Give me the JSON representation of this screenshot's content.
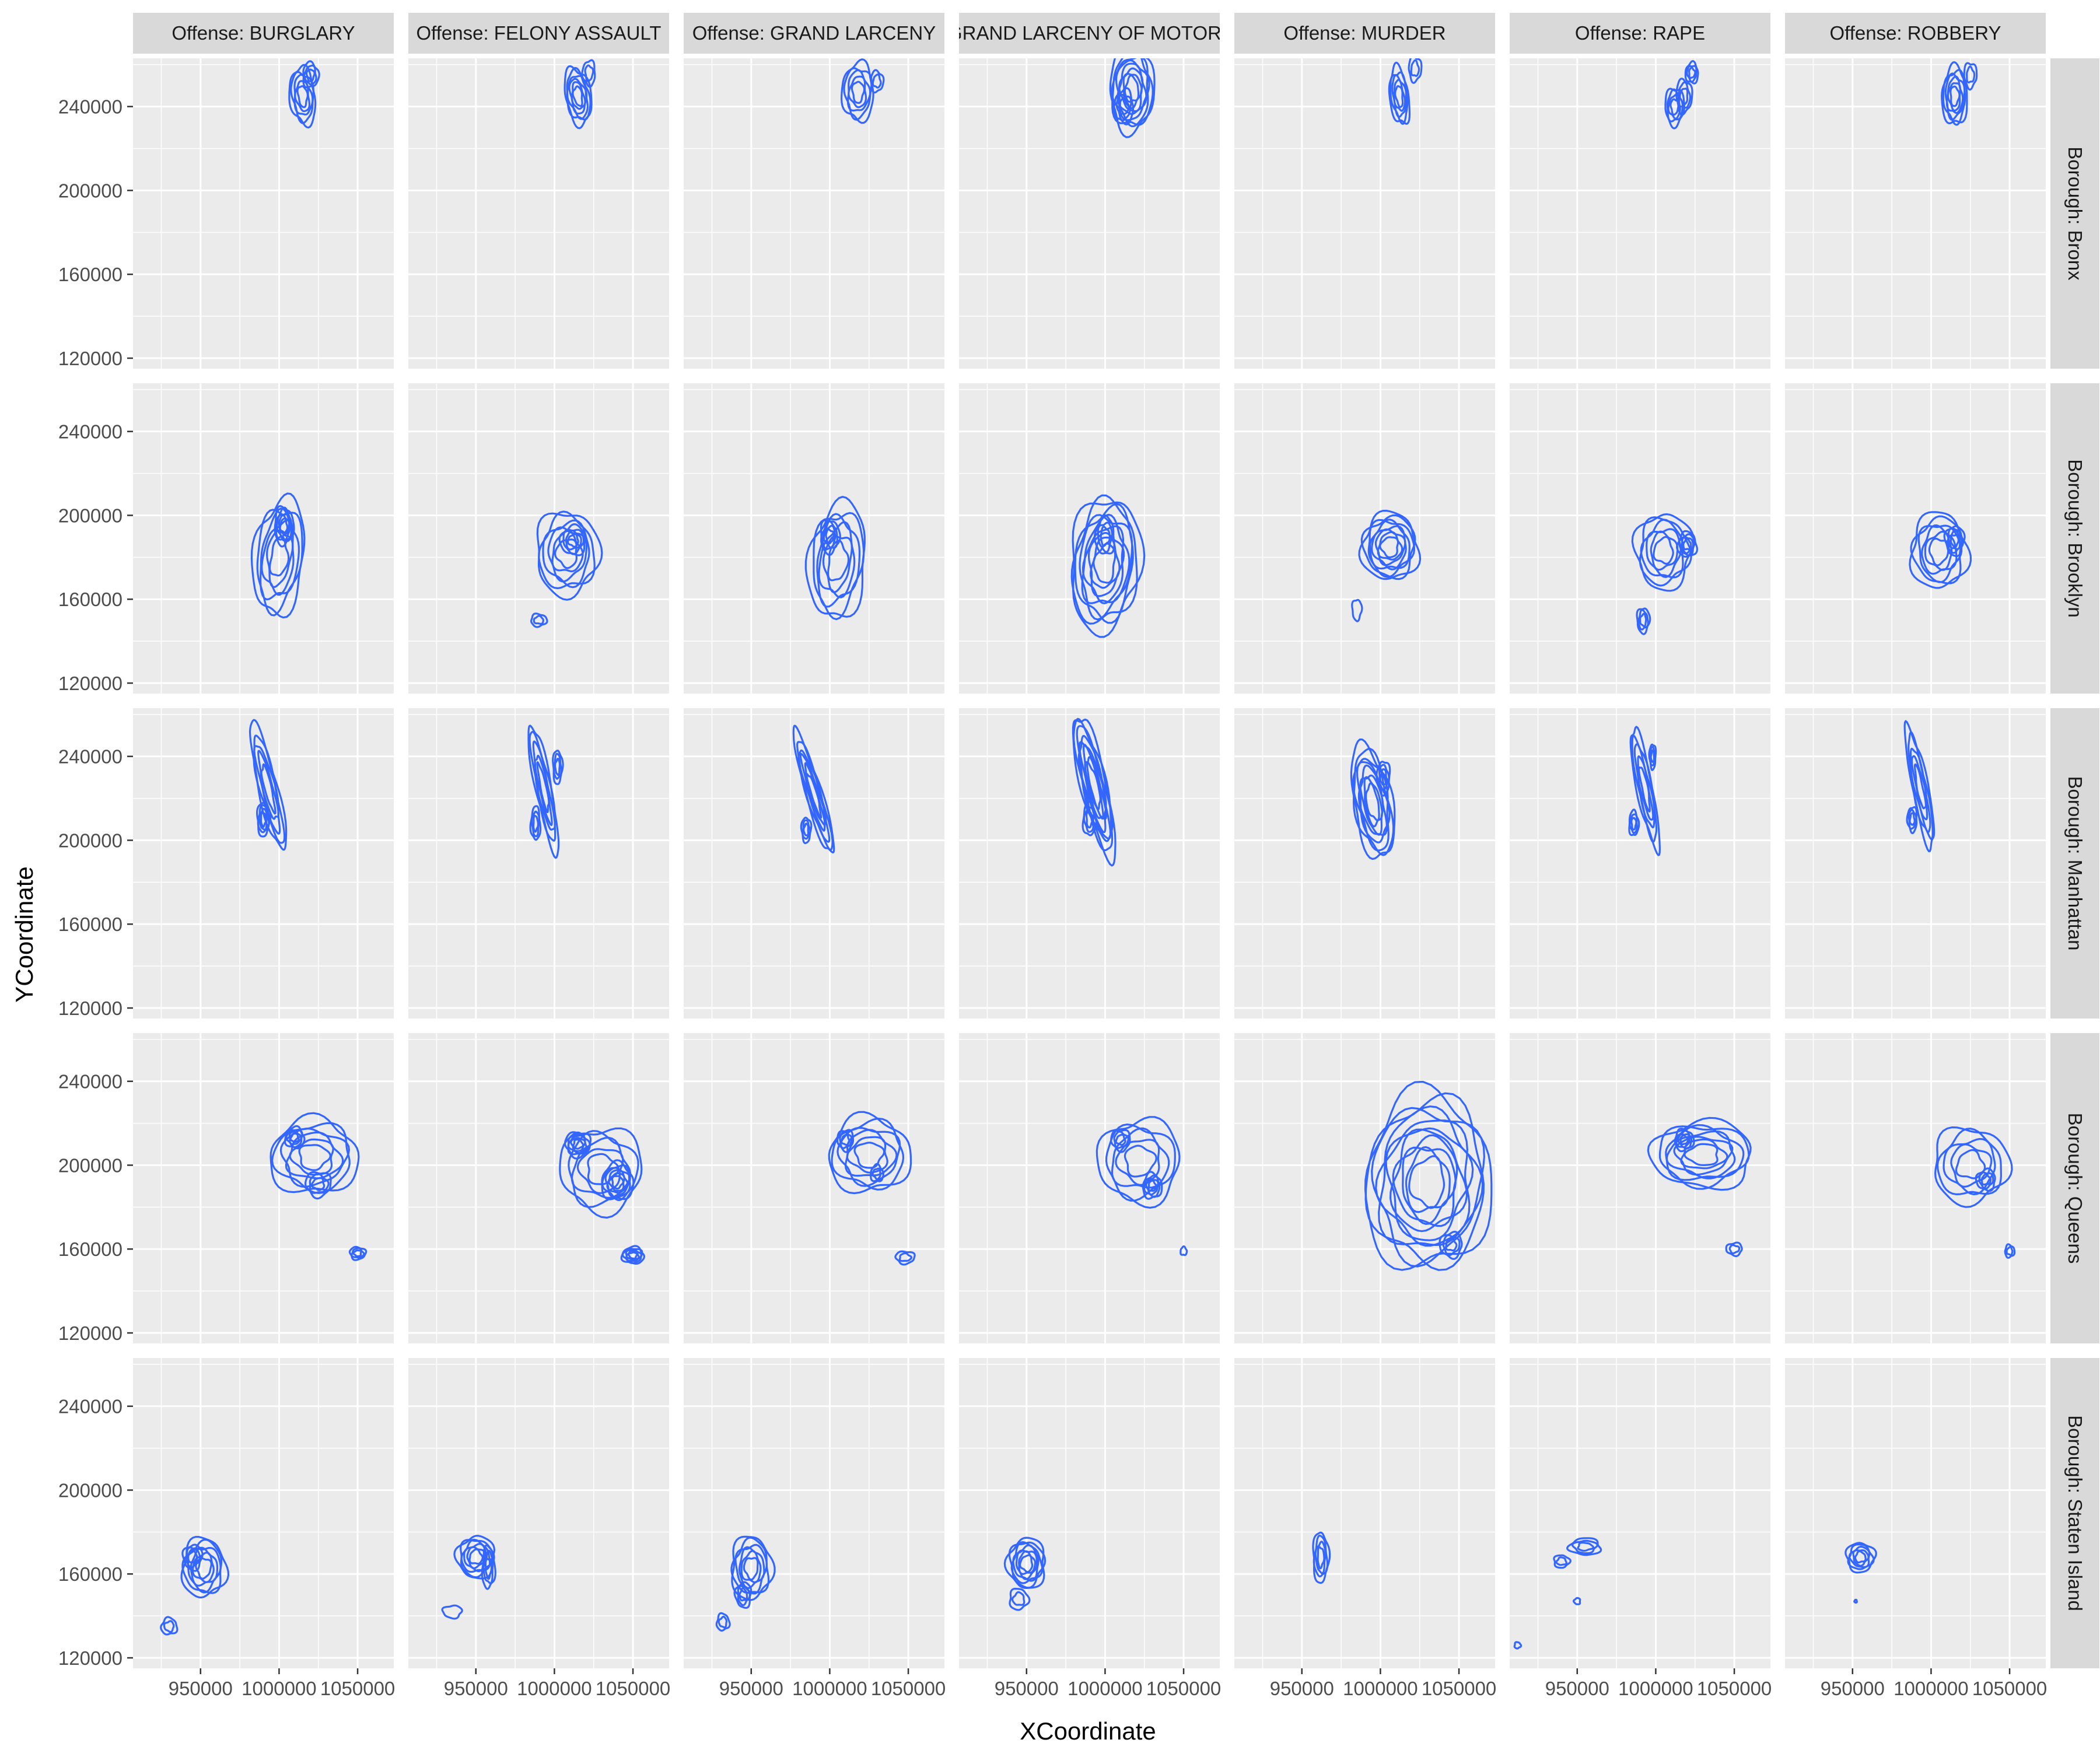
{
  "chart_data": {
    "type": "contour",
    "xlabel": "XCoordinate",
    "ylabel": "YCoordinate",
    "xlim": [
      907000,
      1073000
    ],
    "ylim": [
      115000,
      263000
    ],
    "x_ticks": [
      950000,
      1000000,
      1050000
    ],
    "x_tick_labels": [
      "950000",
      "1000000",
      "1050000"
    ],
    "y_ticks": [
      120000,
      160000,
      200000,
      240000
    ],
    "y_tick_labels": [
      "120000",
      "160000",
      "200000",
      "240000"
    ],
    "grid": true,
    "line_color": "#3366FF",
    "panel_bg": "#EBEBEB",
    "strip_bg": "#D9D9D9",
    "columns": [
      "Offense: BURGLARY",
      "Offense: FELONY ASSAULT",
      "Offense: GRAND LARCENY",
      "Offense: GRAND LARCENY OF MOTOR VEHICLE",
      "Offense: MURDER",
      "Offense: RAPE",
      "Offense: ROBBERY"
    ],
    "rows": [
      "Borough: Bronx",
      "Borough: Brooklyn",
      "Borough: Manhattan",
      "Borough: Queens",
      "Borough: Staten Island"
    ],
    "density_blobs": [
      [
        [
          {
            "x": 1015000,
            "y": 245000,
            "rx": 8000,
            "ry": 14000,
            "n": 5,
            "rot": 10
          },
          {
            "x": 1020000,
            "y": 255000,
            "rx": 5000,
            "ry": 6000,
            "n": 3
          }
        ],
        [
          {
            "x": 1015000,
            "y": 245000,
            "rx": 8000,
            "ry": 14000,
            "n": 6,
            "rot": 15
          },
          {
            "x": 1022000,
            "y": 256000,
            "rx": 4000,
            "ry": 6000,
            "n": 2
          }
        ],
        [
          {
            "x": 1018000,
            "y": 247000,
            "rx": 10000,
            "ry": 14000,
            "n": 5
          },
          {
            "x": 1030000,
            "y": 252000,
            "rx": 4000,
            "ry": 5000,
            "n": 2
          }
        ],
        [
          {
            "x": 1017000,
            "y": 248000,
            "rx": 14000,
            "ry": 20000,
            "n": 8
          },
          {
            "x": 1012000,
            "y": 240000,
            "rx": 6000,
            "ry": 8000,
            "n": 3
          }
        ],
        [
          {
            "x": 1012000,
            "y": 245000,
            "rx": 6000,
            "ry": 14000,
            "n": 5,
            "rot": 10
          },
          {
            "x": 1022000,
            "y": 258000,
            "rx": 4000,
            "ry": 6000,
            "n": 2
          }
        ],
        [
          {
            "x": 1012000,
            "y": 240000,
            "rx": 6000,
            "ry": 9000,
            "n": 4
          },
          {
            "x": 1023000,
            "y": 256000,
            "rx": 4000,
            "ry": 5000,
            "n": 3
          },
          {
            "x": 1018000,
            "y": 245000,
            "rx": 5000,
            "ry": 8000,
            "n": 3
          }
        ],
        [
          {
            "x": 1015000,
            "y": 245000,
            "rx": 8000,
            "ry": 14000,
            "n": 6
          },
          {
            "x": 1025000,
            "y": 255000,
            "rx": 4000,
            "ry": 6000,
            "n": 2
          }
        ]
      ],
      [
        [
          {
            "x": 1000000,
            "y": 180000,
            "rx": 16000,
            "ry": 28000,
            "n": 6,
            "rot": -10
          },
          {
            "x": 1003000,
            "y": 195000,
            "rx": 6000,
            "ry": 9000,
            "n": 5
          }
        ],
        [
          {
            "x": 1008000,
            "y": 182000,
            "rx": 20000,
            "ry": 20000,
            "n": 6
          },
          {
            "x": 1012000,
            "y": 188000,
            "rx": 8000,
            "ry": 7000,
            "n": 4
          },
          {
            "x": 990000,
            "y": 150000,
            "rx": 5000,
            "ry": 3000,
            "n": 2
          }
        ],
        [
          {
            "x": 1005000,
            "y": 178000,
            "rx": 18000,
            "ry": 28000,
            "n": 6,
            "rot": -10
          },
          {
            "x": 1000000,
            "y": 190000,
            "rx": 6000,
            "ry": 8000,
            "n": 4
          }
        ],
        [
          {
            "x": 1000000,
            "y": 177000,
            "rx": 22000,
            "ry": 32000,
            "n": 9,
            "rot": -10
          },
          {
            "x": 1000000,
            "y": 190000,
            "rx": 6000,
            "ry": 9000,
            "n": 3
          }
        ],
        [
          {
            "x": 1006000,
            "y": 185000,
            "rx": 18000,
            "ry": 16000,
            "n": 8
          },
          {
            "x": 985000,
            "y": 155000,
            "rx": 3000,
            "ry": 5000,
            "n": 1
          }
        ],
        [
          {
            "x": 1005000,
            "y": 183000,
            "rx": 18000,
            "ry": 18000,
            "n": 6
          },
          {
            "x": 1020000,
            "y": 186000,
            "rx": 6000,
            "ry": 6000,
            "n": 4
          },
          {
            "x": 992000,
            "y": 150000,
            "rx": 4000,
            "ry": 6000,
            "n": 3
          }
        ],
        [
          {
            "x": 1005000,
            "y": 183000,
            "rx": 18000,
            "ry": 18000,
            "n": 6
          },
          {
            "x": 1015000,
            "y": 188000,
            "rx": 6000,
            "ry": 7000,
            "n": 4
          }
        ]
      ],
      [
        [
          {
            "x": 993000,
            "y": 225000,
            "rx": 6000,
            "ry": 32000,
            "n": 5,
            "rot": 18
          },
          {
            "x": 990000,
            "y": 210000,
            "rx": 4000,
            "ry": 8000,
            "n": 4
          }
        ],
        [
          {
            "x": 993000,
            "y": 225000,
            "rx": 5000,
            "ry": 32000,
            "n": 5,
            "rot": 15
          },
          {
            "x": 988000,
            "y": 208000,
            "rx": 3000,
            "ry": 8000,
            "n": 3
          },
          {
            "x": 1002000,
            "y": 235000,
            "rx": 3000,
            "ry": 8000,
            "n": 3
          }
        ],
        [
          {
            "x": 990000,
            "y": 222000,
            "rx": 5000,
            "ry": 32000,
            "n": 6,
            "rot": 22
          },
          {
            "x": 985000,
            "y": 205000,
            "rx": 3000,
            "ry": 6000,
            "n": 3
          }
        ],
        [
          {
            "x": 993000,
            "y": 226000,
            "rx": 8000,
            "ry": 36000,
            "n": 8,
            "rot": 18
          },
          {
            "x": 990000,
            "y": 210000,
            "rx": 4000,
            "ry": 8000,
            "n": 3
          }
        ],
        [
          {
            "x": 995000,
            "y": 218000,
            "rx": 12000,
            "ry": 28000,
            "n": 8,
            "rot": 15
          },
          {
            "x": 1002000,
            "y": 230000,
            "rx": 4000,
            "ry": 8000,
            "n": 3
          }
        ],
        [
          {
            "x": 993000,
            "y": 225000,
            "rx": 5000,
            "ry": 30000,
            "n": 5,
            "rot": 15
          },
          {
            "x": 986000,
            "y": 208000,
            "rx": 3000,
            "ry": 6000,
            "n": 3
          },
          {
            "x": 998000,
            "y": 240000,
            "rx": 2000,
            "ry": 6000,
            "n": 3
          }
        ],
        [
          {
            "x": 993000,
            "y": 225000,
            "rx": 5000,
            "ry": 30000,
            "n": 5,
            "rot": 15
          },
          {
            "x": 988000,
            "y": 210000,
            "rx": 3000,
            "ry": 6000,
            "n": 3
          }
        ]
      ],
      [
        [
          {
            "x": 1022000,
            "y": 204000,
            "rx": 28000,
            "ry": 18000,
            "n": 6
          },
          {
            "x": 1025000,
            "y": 191000,
            "rx": 8000,
            "ry": 6000,
            "n": 3
          },
          {
            "x": 1010000,
            "y": 213000,
            "rx": 6000,
            "ry": 5000,
            "n": 4
          },
          {
            "x": 1050000,
            "y": 158000,
            "rx": 5000,
            "ry": 3000,
            "n": 3
          }
        ],
        [
          {
            "x": 1030000,
            "y": 198000,
            "rx": 26000,
            "ry": 20000,
            "n": 5
          },
          {
            "x": 1040000,
            "y": 192000,
            "rx": 10000,
            "ry": 9000,
            "n": 6
          },
          {
            "x": 1015000,
            "y": 210000,
            "rx": 8000,
            "ry": 6000,
            "n": 5
          },
          {
            "x": 1050000,
            "y": 157000,
            "rx": 7000,
            "ry": 4000,
            "n": 5
          }
        ],
        [
          {
            "x": 1025000,
            "y": 205000,
            "rx": 26000,
            "ry": 18000,
            "n": 6
          },
          {
            "x": 1010000,
            "y": 212000,
            "rx": 5000,
            "ry": 5000,
            "n": 3
          },
          {
            "x": 1030000,
            "y": 196000,
            "rx": 4000,
            "ry": 4000,
            "n": 2
          },
          {
            "x": 1048000,
            "y": 156000,
            "rx": 6000,
            "ry": 3000,
            "n": 2
          }
        ],
        [
          {
            "x": 1022000,
            "y": 202000,
            "rx": 26000,
            "ry": 20000,
            "n": 5
          },
          {
            "x": 1030000,
            "y": 190000,
            "rx": 6000,
            "ry": 6000,
            "n": 4
          },
          {
            "x": 1010000,
            "y": 212000,
            "rx": 6000,
            "ry": 5000,
            "n": 3
          },
          {
            "x": 1050000,
            "y": 159000,
            "rx": 2000,
            "ry": 2000,
            "n": 1
          }
        ],
        [
          {
            "x": 1030000,
            "y": 192000,
            "rx": 40000,
            "ry": 42000,
            "n": 11,
            "rot": -15
          },
          {
            "x": 1045000,
            "y": 162000,
            "rx": 7000,
            "ry": 6000,
            "n": 3
          }
        ],
        [
          {
            "x": 1030000,
            "y": 205000,
            "rx": 32000,
            "ry": 16000,
            "n": 7
          },
          {
            "x": 1018000,
            "y": 212000,
            "rx": 6000,
            "ry": 5000,
            "n": 4
          },
          {
            "x": 1050000,
            "y": 160000,
            "rx": 5000,
            "ry": 3000,
            "n": 2
          }
        ],
        [
          {
            "x": 1025000,
            "y": 200000,
            "rx": 24000,
            "ry": 18000,
            "n": 5
          },
          {
            "x": 1035000,
            "y": 193000,
            "rx": 6000,
            "ry": 5000,
            "n": 3
          },
          {
            "x": 1050000,
            "y": 159000,
            "rx": 3000,
            "ry": 3000,
            "n": 2
          }
        ]
      ],
      [
        [
          {
            "x": 952000,
            "y": 163000,
            "rx": 14000,
            "ry": 14000,
            "n": 6
          },
          {
            "x": 945000,
            "y": 168000,
            "rx": 6000,
            "ry": 6000,
            "n": 3
          },
          {
            "x": 930000,
            "y": 135000,
            "rx": 5000,
            "ry": 4000,
            "n": 2
          }
        ],
        [
          {
            "x": 950000,
            "y": 168000,
            "rx": 12000,
            "ry": 10000,
            "n": 6
          },
          {
            "x": 958000,
            "y": 163000,
            "rx": 4000,
            "ry": 10000,
            "n": 3
          },
          {
            "x": 935000,
            "y": 142000,
            "rx": 6000,
            "ry": 3000,
            "n": 1
          }
        ],
        [
          {
            "x": 950000,
            "y": 163000,
            "rx": 13000,
            "ry": 15000,
            "n": 6
          },
          {
            "x": 945000,
            "y": 150000,
            "rx": 5000,
            "ry": 6000,
            "n": 3
          },
          {
            "x": 932000,
            "y": 137000,
            "rx": 4000,
            "ry": 4000,
            "n": 2
          }
        ],
        [
          {
            "x": 950000,
            "y": 165000,
            "rx": 12000,
            "ry": 12000,
            "n": 7
          },
          {
            "x": 945000,
            "y": 148000,
            "rx": 6000,
            "ry": 5000,
            "n": 2
          }
        ],
        [
          {
            "x": 962000,
            "y": 168000,
            "rx": 5000,
            "ry": 12000,
            "n": 4
          }
        ],
        [
          {
            "x": 955000,
            "y": 173000,
            "rx": 10000,
            "ry": 4000,
            "n": 3
          },
          {
            "x": 940000,
            "y": 166000,
            "rx": 5000,
            "ry": 3000,
            "n": 2
          },
          {
            "x": 950000,
            "y": 147000,
            "rx": 2000,
            "ry": 1500,
            "n": 1
          },
          {
            "x": 912000,
            "y": 126000,
            "rx": 2000,
            "ry": 1500,
            "n": 1
          }
        ],
        [
          {
            "x": 955000,
            "y": 168000,
            "rx": 9000,
            "ry": 7000,
            "n": 5
          },
          {
            "x": 952000,
            "y": 147000,
            "rx": 800,
            "ry": 700,
            "n": 1
          }
        ]
      ]
    ]
  }
}
